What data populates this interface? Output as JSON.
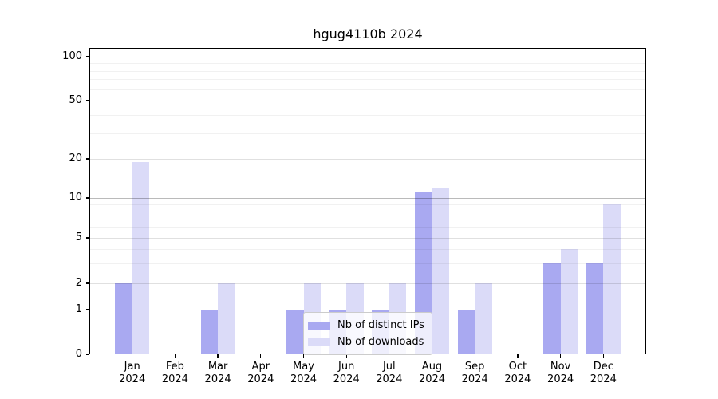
{
  "title": "hgug4110b 2024",
  "chart_data": {
    "type": "bar",
    "title": "hgug4110b 2024",
    "x_categories": [
      {
        "month": "Jan",
        "year": "2024"
      },
      {
        "month": "Feb",
        "year": "2024"
      },
      {
        "month": "Mar",
        "year": "2024"
      },
      {
        "month": "Apr",
        "year": "2024"
      },
      {
        "month": "May",
        "year": "2024"
      },
      {
        "month": "Jun",
        "year": "2024"
      },
      {
        "month": "Jul",
        "year": "2024"
      },
      {
        "month": "Aug",
        "year": "2024"
      },
      {
        "month": "Sep",
        "year": "2024"
      },
      {
        "month": "Oct",
        "year": "2024"
      },
      {
        "month": "Nov",
        "year": "2024"
      },
      {
        "month": "Dec",
        "year": "2024"
      }
    ],
    "series": [
      {
        "name": "Nb of distinct IPs",
        "color": "#a9a9f1",
        "values": [
          2,
          0,
          1,
          0,
          1,
          1,
          1,
          11,
          1,
          0,
          3,
          3
        ]
      },
      {
        "name": "Nb of downloads",
        "color": "#dbdbf8",
        "values": [
          19,
          0,
          2,
          0,
          2,
          2,
          2,
          12,
          2,
          0,
          4,
          9
        ]
      }
    ],
    "y_axis": {
      "ticks": [
        0,
        1,
        2,
        5,
        10,
        20,
        50,
        100
      ],
      "minor_ticks": [
        3,
        4,
        6,
        7,
        8,
        9,
        30,
        40,
        60,
        70,
        80,
        90
      ],
      "scale": "log-like with zero baseline",
      "range": [
        0,
        100
      ]
    },
    "xlabel": "",
    "ylabel": "",
    "grid": true,
    "grid_over_bars": true,
    "legend_position": "lower center"
  },
  "legend": {
    "items": [
      {
        "label": "Nb of distinct IPs",
        "color": "#a9a9f1"
      },
      {
        "label": "Nb of downloads",
        "color": "#dbdbf8"
      }
    ]
  },
  "colors": {
    "bar_distinct_ips": "#a9a9f1",
    "bar_downloads": "#dbdbf8",
    "grid_decade": "rgba(0,0,0,0.27)",
    "grid_major": "rgba(0,0,0,0.12)",
    "grid_minor": "rgba(0,0,0,0.055)",
    "axis": "#000000",
    "background": "#ffffff"
  }
}
